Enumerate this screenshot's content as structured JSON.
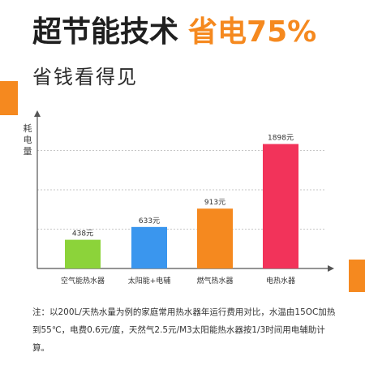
{
  "headline": {
    "main": "超节能技术",
    "accent": "省电75%"
  },
  "subheadline": "省钱看得见",
  "note": "注：以200L/天热水量为例的家庭常用热水器年运行费用对比，水温由15OC加热到55℃，电费0.6元/度，天然气2.5元/M3太阳能热水器按1/3时间用电辅助计算。",
  "colors": {
    "accent": "#f5891f"
  },
  "chart_data": {
    "type": "bar",
    "ylabel": "耗电量",
    "ylim": [
      0,
      2400
    ],
    "grid": true,
    "categories": [
      "空气能热水器",
      "太阳能+电辅",
      "燃气热水器",
      "电热水器"
    ],
    "values": [
      438,
      633,
      913,
      1898
    ],
    "value_labels": [
      "438元",
      "633元",
      "913元",
      "1898元"
    ],
    "bar_colors": [
      "#8cd33a",
      "#3a96ee",
      "#f5891f",
      "#f2335a"
    ]
  }
}
